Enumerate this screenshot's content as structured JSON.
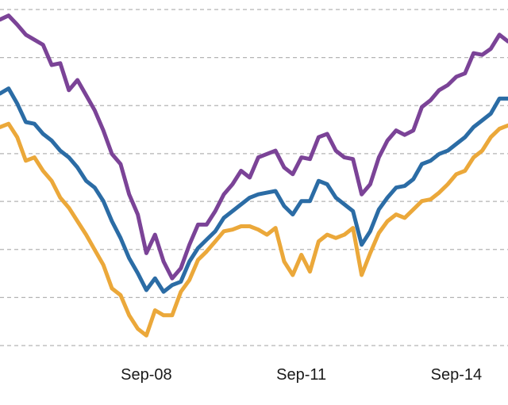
{
  "chart_data": {
    "type": "line",
    "title": "",
    "xlabel": "",
    "ylabel": "",
    "grid": true,
    "legend": "none",
    "x_tick_labels": [
      "Sep-08",
      "Sep-11",
      "Sep-14"
    ],
    "x_range": [
      "2005-11",
      "2015-09"
    ],
    "y_range": [
      0,
      100
    ],
    "y_gridlines": [
      0,
      14.3,
      28.6,
      42.9,
      57.1,
      71.4,
      85.7,
      100
    ],
    "x": [
      "2005-11",
      "2006-01",
      "2006-03",
      "2006-05",
      "2006-07",
      "2006-09",
      "2006-11",
      "2007-01",
      "2007-03",
      "2007-05",
      "2007-07",
      "2007-09",
      "2007-11",
      "2008-01",
      "2008-03",
      "2008-05",
      "2008-07",
      "2008-09",
      "2008-11",
      "2009-01",
      "2009-03",
      "2009-05",
      "2009-07",
      "2009-09",
      "2009-11",
      "2010-01",
      "2010-03",
      "2010-05",
      "2010-07",
      "2010-09",
      "2010-11",
      "2011-01",
      "2011-03",
      "2011-05",
      "2011-07",
      "2011-09",
      "2011-11",
      "2012-01",
      "2012-03",
      "2012-05",
      "2012-07",
      "2012-09",
      "2012-11",
      "2013-01",
      "2013-03",
      "2013-05",
      "2013-07",
      "2013-09",
      "2013-11",
      "2014-01",
      "2014-03",
      "2014-05",
      "2014-07",
      "2014-09",
      "2014-11",
      "2015-01",
      "2015-03",
      "2015-05",
      "2015-07",
      "2015-09"
    ],
    "series": [
      {
        "color": "#7b4397",
        "values": [
          97,
          98.2,
          95.5,
          92.5,
          91,
          89.5,
          83.5,
          84,
          76,
          79,
          74.5,
          70,
          64,
          57,
          54,
          45,
          39,
          27.5,
          33,
          25,
          20,
          23,
          30,
          36,
          36,
          40,
          45,
          48,
          52,
          50,
          56,
          57,
          58,
          53,
          51,
          56,
          55.5,
          62,
          63,
          58,
          56,
          55.5,
          45,
          48,
          56,
          61,
          64,
          62.7,
          64,
          71,
          73,
          76,
          77.5,
          80,
          81,
          87,
          86.5,
          88.3,
          92.5,
          90.5
        ]
      },
      {
        "color": "#2b6ca5",
        "values": [
          75,
          76.5,
          72,
          66.5,
          66,
          63,
          61,
          58,
          56,
          53,
          49,
          47,
          43,
          37,
          32,
          26,
          21.5,
          16.5,
          20,
          16,
          18,
          19,
          25,
          29,
          31.5,
          34,
          38,
          40,
          42,
          44,
          45,
          45.5,
          46,
          41.5,
          39,
          43,
          43,
          49,
          48,
          44,
          42,
          40,
          30,
          34,
          40.5,
          44,
          47,
          47.5,
          49.5,
          54,
          55,
          57,
          58,
          60,
          62,
          65,
          67,
          69,
          73.5,
          73.5
        ]
      },
      {
        "color": "#eba83a",
        "values": [
          65,
          66,
          62,
          55,
          56,
          52,
          49,
          44,
          41,
          37,
          33,
          28.5,
          24,
          17,
          15,
          9,
          5,
          3,
          10.5,
          9,
          9,
          16,
          19.5,
          25.5,
          28,
          31,
          34,
          34.5,
          35.5,
          35.5,
          34.5,
          33,
          35,
          25,
          21,
          27,
          22,
          31,
          33,
          32,
          33,
          35,
          21,
          27.5,
          33.5,
          37,
          39,
          38,
          40.5,
          43,
          43.5,
          45.5,
          48,
          51,
          52,
          56,
          58,
          62,
          64.5,
          65.5
        ]
      }
    ]
  }
}
